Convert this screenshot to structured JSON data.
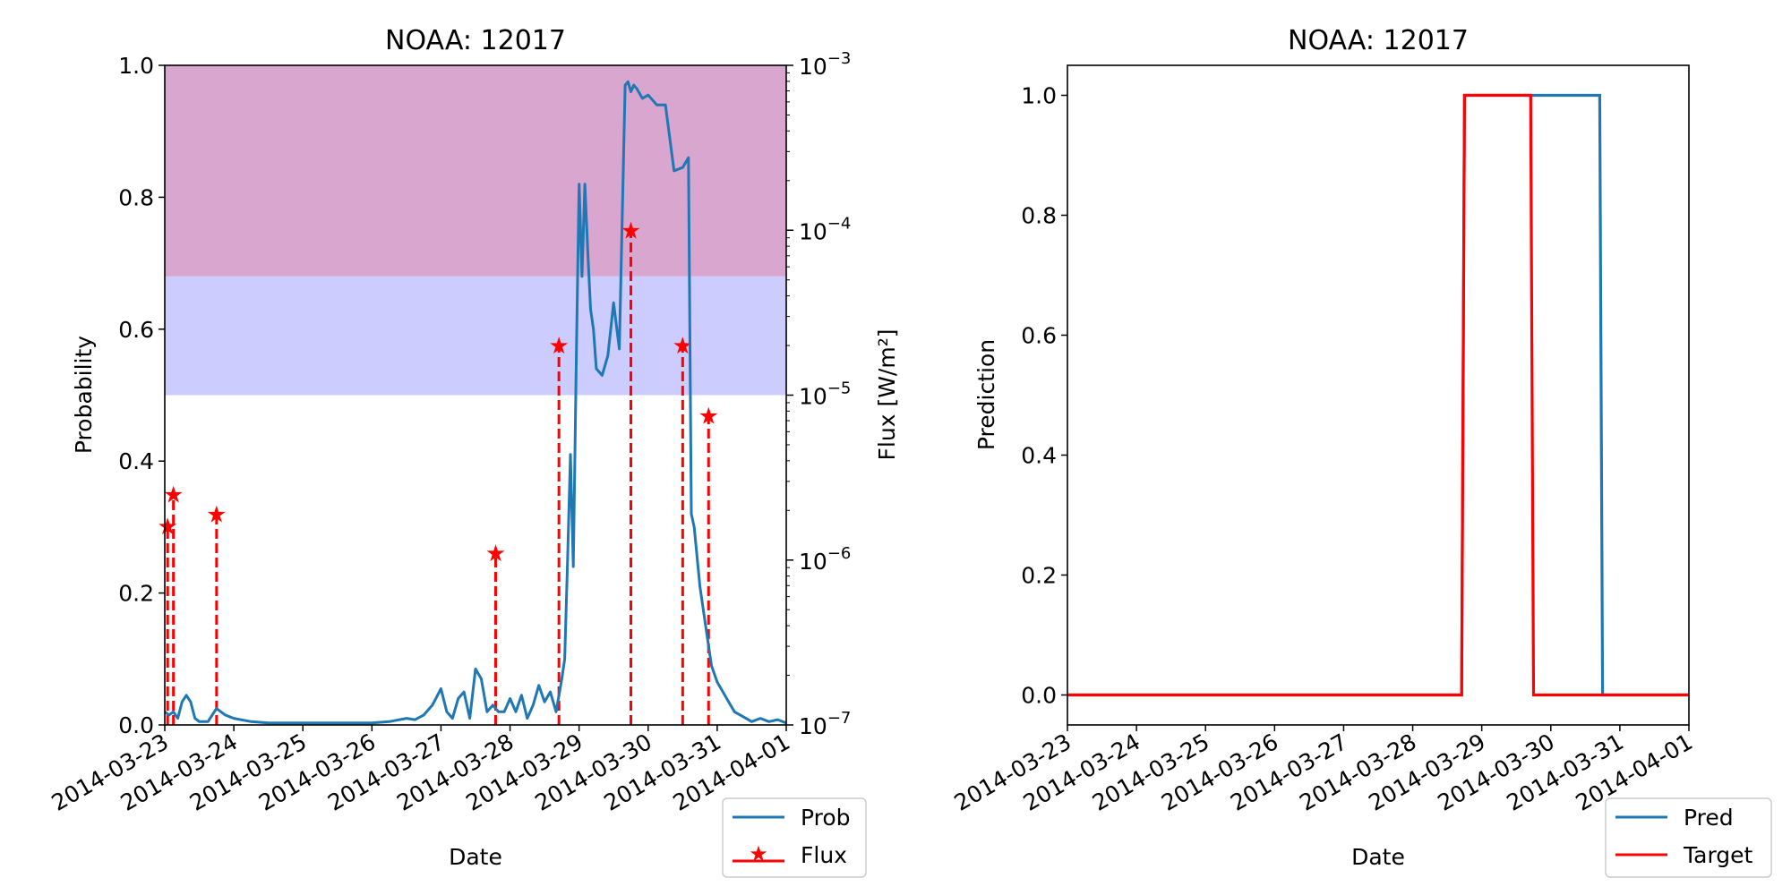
{
  "chart_data": [
    {
      "type": "line",
      "title": "NOAA: 12017",
      "xlabel": "Date",
      "ylabel": "Probability",
      "ylabel_right": "Flux [W/m²]",
      "xlim": [
        "2014-03-23 00:00",
        "2014-04-01 00:00"
      ],
      "ylim": [
        0,
        1
      ],
      "y_ticks": [
        "0.0",
        "0.2",
        "0.4",
        "0.6",
        "0.8",
        "1.0"
      ],
      "x_ticks": [
        "2014-03-23",
        "2014-03-24",
        "2014-03-25",
        "2014-03-26",
        "2014-03-27",
        "2014-03-28",
        "2014-03-29",
        "2014-03-30",
        "2014-03-31",
        "2014-04-01"
      ],
      "right_axis": {
        "scale": "log",
        "ylim": [
          1e-07,
          0.001
        ],
        "tick_bases": [
          "10",
          "10",
          "10",
          "10",
          "10"
        ],
        "tick_exponents": [
          "−7",
          "−6",
          "−5",
          "−4",
          "−3"
        ]
      },
      "bands": [
        {
          "from": 0.5,
          "to": 0.68,
          "color": "#ccccff"
        },
        {
          "from": 0.68,
          "to": 1.0,
          "color": "#d8a6cf"
        }
      ],
      "series": [
        {
          "name": "Prob",
          "color": "#1f77b4",
          "x": [
            "2014-03-23 00:00",
            "2014-03-23 01:30",
            "2014-03-23 03:00",
            "2014-03-23 04:30",
            "2014-03-23 06:00",
            "2014-03-23 07:30",
            "2014-03-23 09:00",
            "2014-03-23 10:30",
            "2014-03-23 12:00",
            "2014-03-23 13:30",
            "2014-03-23 15:00",
            "2014-03-23 18:00",
            "2014-03-23 21:00",
            "2014-03-24 00:00",
            "2014-03-24 06:00",
            "2014-03-24 12:00",
            "2014-03-24 18:00",
            "2014-03-25 00:00",
            "2014-03-25 12:00",
            "2014-03-26 00:00",
            "2014-03-26 06:00",
            "2014-03-26 12:00",
            "2014-03-26 15:00",
            "2014-03-26 18:00",
            "2014-03-26 21:00",
            "2014-03-27 00:00",
            "2014-03-27 02:00",
            "2014-03-27 04:00",
            "2014-03-27 06:00",
            "2014-03-27 08:00",
            "2014-03-27 10:00",
            "2014-03-27 12:00",
            "2014-03-27 14:00",
            "2014-03-27 16:00",
            "2014-03-27 18:00",
            "2014-03-27 20:00",
            "2014-03-27 22:00",
            "2014-03-28 00:00",
            "2014-03-28 02:00",
            "2014-03-28 04:00",
            "2014-03-28 06:00",
            "2014-03-28 08:00",
            "2014-03-28 10:00",
            "2014-03-28 12:00",
            "2014-03-28 14:00",
            "2014-03-28 16:00",
            "2014-03-28 18:00",
            "2014-03-28 19:00",
            "2014-03-28 20:00",
            "2014-03-28 21:00",
            "2014-03-28 22:00",
            "2014-03-28 23:00",
            "2014-03-29 00:00",
            "2014-03-29 01:00",
            "2014-03-29 02:00",
            "2014-03-29 03:00",
            "2014-03-29 04:00",
            "2014-03-29 05:00",
            "2014-03-29 06:00",
            "2014-03-29 08:00",
            "2014-03-29 10:00",
            "2014-03-29 12:00",
            "2014-03-29 14:00",
            "2014-03-29 16:00",
            "2014-03-29 17:00",
            "2014-03-29 18:00",
            "2014-03-29 19:00",
            "2014-03-29 20:00",
            "2014-03-29 22:00",
            "2014-03-30 00:00",
            "2014-03-30 03:00",
            "2014-03-30 06:00",
            "2014-03-30 09:00",
            "2014-03-30 12:00",
            "2014-03-30 14:00",
            "2014-03-30 15:00",
            "2014-03-30 16:00",
            "2014-03-30 18:00",
            "2014-03-30 20:00",
            "2014-03-30 22:00",
            "2014-03-31 00:00",
            "2014-03-31 02:00",
            "2014-03-31 04:00",
            "2014-03-31 06:00",
            "2014-03-31 08:00",
            "2014-03-31 10:00",
            "2014-03-31 12:00",
            "2014-03-31 15:00",
            "2014-03-31 18:00",
            "2014-03-31 21:00",
            "2014-04-01 00:00"
          ],
          "values": [
            0.02,
            0.015,
            0.02,
            0.01,
            0.035,
            0.045,
            0.035,
            0.01,
            0.005,
            0.005,
            0.005,
            0.025,
            0.015,
            0.01,
            0.005,
            0.003,
            0.003,
            0.003,
            0.003,
            0.003,
            0.005,
            0.01,
            0.008,
            0.015,
            0.03,
            0.055,
            0.02,
            0.01,
            0.04,
            0.05,
            0.01,
            0.085,
            0.07,
            0.02,
            0.03,
            0.02,
            0.02,
            0.04,
            0.02,
            0.045,
            0.01,
            0.03,
            0.06,
            0.035,
            0.05,
            0.02,
            0.07,
            0.1,
            0.25,
            0.41,
            0.24,
            0.55,
            0.82,
            0.68,
            0.82,
            0.72,
            0.63,
            0.6,
            0.54,
            0.53,
            0.56,
            0.64,
            0.57,
            0.97,
            0.975,
            0.96,
            0.97,
            0.965,
            0.95,
            0.955,
            0.94,
            0.94,
            0.84,
            0.845,
            0.86,
            0.32,
            0.3,
            0.21,
            0.15,
            0.09,
            0.065,
            0.05,
            0.035,
            0.02,
            0.015,
            0.01,
            0.005,
            0.01,
            0.005,
            0.008,
            0.003
          ]
        },
        {
          "name": "Flux",
          "color": "#ff0000",
          "style": "stem",
          "x": [
            "2014-03-23 01:00",
            "2014-03-23 03:00",
            "2014-03-23 18:00",
            "2014-03-27 19:00",
            "2014-03-28 17:00",
            "2014-03-29 18:00",
            "2014-03-30 12:00",
            "2014-03-30 21:00"
          ],
          "values": [
            1.6e-06,
            2.5e-06,
            1.9e-06,
            1.1e-06,
            2e-05,
            0.0001,
            2e-05,
            7.5e-06
          ]
        }
      ],
      "legend": {
        "entries": [
          "Prob",
          "Flux"
        ],
        "placement": "lower-right"
      }
    },
    {
      "type": "line",
      "title": "NOAA: 12017",
      "xlabel": "Date",
      "ylabel": "Prediction",
      "xlim": [
        "2014-03-23 00:00",
        "2014-04-01 00:00"
      ],
      "ylim": [
        -0.05,
        1.05
      ],
      "y_ticks": [
        "0.0",
        "0.2",
        "0.4",
        "0.6",
        "0.8",
        "1.0"
      ],
      "x_ticks": [
        "2014-03-23",
        "2014-03-24",
        "2014-03-25",
        "2014-03-26",
        "2014-03-27",
        "2014-03-28",
        "2014-03-29",
        "2014-03-30",
        "2014-03-31",
        "2014-04-01"
      ],
      "series": [
        {
          "name": "Pred",
          "color": "#1f77b4",
          "x": [
            "2014-03-23 00:00",
            "2014-03-28 17:00",
            "2014-03-28 18:00",
            "2014-03-30 17:00",
            "2014-03-30 18:00",
            "2014-04-01 00:00"
          ],
          "values": [
            0,
            0,
            1,
            1,
            0,
            0
          ]
        },
        {
          "name": "Target",
          "color": "#ff0000",
          "x": [
            "2014-03-23 00:00",
            "2014-03-28 17:00",
            "2014-03-28 18:00",
            "2014-03-29 17:00",
            "2014-03-29 18:00",
            "2014-04-01 00:00"
          ],
          "values": [
            0,
            0,
            1,
            1,
            0,
            0
          ]
        }
      ],
      "legend": {
        "entries": [
          "Pred",
          "Target"
        ],
        "placement": "lower-right"
      }
    }
  ]
}
